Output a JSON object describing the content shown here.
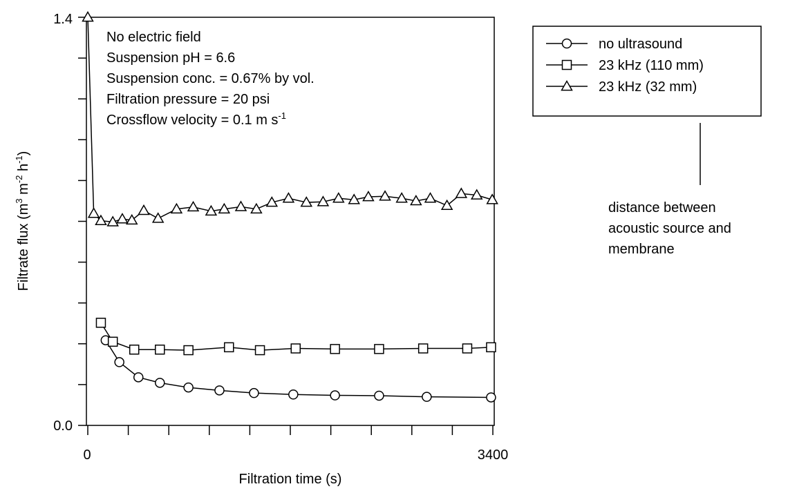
{
  "chart_data": {
    "type": "line",
    "xlabel": "Filtration time (s)",
    "ylabel_parts": {
      "a": "Filtrate flux (m",
      "sup1": "3",
      "b": " m",
      "sup2": "-2",
      "c": " h",
      "sup3": "-1",
      "d": ")"
    },
    "xlim": [
      0,
      3400
    ],
    "ylim": [
      0.0,
      1.4
    ],
    "x_tick_labels": [
      "0",
      "3400"
    ],
    "y_tick_labels": [
      "0.0",
      "1.4"
    ],
    "annotations": [
      "No electric field",
      "Suspension pH = 6.6",
      "Suspension conc. = 0.67% by vol.",
      "Filtration pressure = 20 psi"
    ],
    "crossflow_annotation": {
      "text": "Crossflow velocity = 0.1 m s",
      "sup": "-1"
    },
    "legend_placement": "right",
    "legend_note": [
      "distance between",
      "acoustic source and",
      "membrane"
    ],
    "series": [
      {
        "name": "no ultrasound",
        "marker": "circle",
        "x": [
          150,
          265,
          425,
          605,
          845,
          1105,
          1395,
          1725,
          2075,
          2445,
          2845,
          3385
        ],
        "y": [
          0.292,
          0.217,
          0.165,
          0.146,
          0.13,
          0.12,
          0.111,
          0.106,
          0.103,
          0.102,
          0.098,
          0.096
        ]
      },
      {
        "name": "23 kHz  (110 mm)",
        "marker": "square",
        "x": [
          110,
          210,
          390,
          605,
          845,
          1185,
          1445,
          1745,
          2075,
          2445,
          2815,
          3185,
          3385
        ],
        "y": [
          0.352,
          0.287,
          0.26,
          0.26,
          0.258,
          0.268,
          0.258,
          0.264,
          0.262,
          0.262,
          0.264,
          0.264,
          0.268
        ]
      },
      {
        "name": "23 kHz  (32 mm)",
        "marker": "triangle",
        "x": [
          0,
          50,
          110,
          210,
          290,
          370,
          470,
          590,
          745,
          885,
          1035,
          1145,
          1285,
          1415,
          1545,
          1685,
          1835,
          1975,
          2105,
          2235,
          2355,
          2495,
          2635,
          2755,
          2875,
          3015,
          3135,
          3265,
          3395
        ],
        "y": [
          1.4,
          0.727,
          0.702,
          0.698,
          0.708,
          0.704,
          0.737,
          0.71,
          0.742,
          0.749,
          0.735,
          0.742,
          0.75,
          0.742,
          0.765,
          0.779,
          0.765,
          0.767,
          0.779,
          0.774,
          0.784,
          0.786,
          0.779,
          0.77,
          0.779,
          0.754,
          0.795,
          0.79,
          0.774
        ]
      }
    ]
  }
}
